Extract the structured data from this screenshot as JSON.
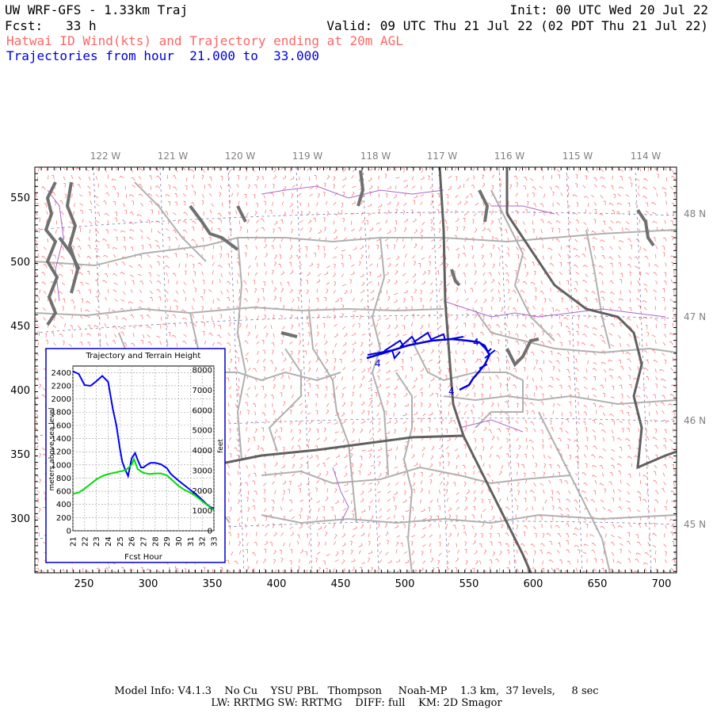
{
  "header": {
    "model_title": "UW WRF-GFS - 1.33km Traj",
    "init": "Init: 00 UTC Wed 20 Jul 22",
    "fcst": "Fcst:   33 h",
    "valid": "Valid: 09 UTC Thu 21 Jul 22 (02 PDT Thu 21 Jul 22)",
    "field": "Hatwai ID Wind(kts) and Trajectory ending at 20m AGL",
    "traj_range": "Trajectories from hour  21.000 to  33.000"
  },
  "map": {
    "top_lon_labels": [
      "122 W",
      "121 W",
      "120 W",
      "119 W",
      "118 W",
      "117 W",
      "116 W",
      "115 W",
      "114 W"
    ],
    "right_lat_labels": [
      "48 N",
      "47 N",
      "46 N",
      "45 N"
    ],
    "left_y_ticks": [
      "550",
      "500",
      "450",
      "400",
      "350",
      "300"
    ],
    "bottom_x_ticks": [
      "250",
      "300",
      "350",
      "400",
      "450",
      "500",
      "550",
      "600",
      "650",
      "700"
    ],
    "trajectory_marker_1": "4",
    "trajectory_marker_2": "4",
    "trajectory_marker_3": "4",
    "colors": {
      "wind_barbs": "#ff6666",
      "trajectory": "#0000dd",
      "roads": "#b0b0b0",
      "state_lines": "#606060",
      "rivers": "#aa66cc"
    }
  },
  "inset": {
    "title": "Trajectory and Terrain Height",
    "ylabel_left": "meters above sea level",
    "ylabel_right": "feet",
    "xlabel": "Fcst Hour"
  },
  "chart_data": {
    "type": "line",
    "title": "Trajectory and Terrain Height",
    "xlabel": "Fcst Hour",
    "ylabel": "meters above sea level",
    "y2label": "feet",
    "x_ticks": [
      "21",
      "22",
      "23",
      "24",
      "25",
      "26",
      "27",
      "28",
      "29",
      "30",
      "31",
      "32",
      "33"
    ],
    "y_ticks": [
      "0",
      "200",
      "400",
      "600",
      "800",
      "1000",
      "1200",
      "1400",
      "1600",
      "1800",
      "2000",
      "2200",
      "2400"
    ],
    "y2_ticks": [
      "0",
      "1000",
      "2000",
      "3000",
      "4000",
      "5000",
      "6000",
      "7000",
      "8000"
    ],
    "xlim": [
      21,
      33
    ],
    "ylim": [
      0,
      2500
    ],
    "grid": true,
    "series": [
      {
        "color": "#0000ff",
        "x": [
          21,
          21.5,
          22,
          22.5,
          23,
          23.5,
          24,
          24.4,
          24.7,
          25,
          25.2,
          25.4,
          25.7,
          26,
          26.3,
          26.5,
          26.8,
          27,
          27.3,
          27.6,
          28,
          28.5,
          29,
          29.3,
          29.6,
          30,
          30.5,
          31,
          31.5,
          32,
          32.4,
          32.7,
          33
        ],
        "values": [
          2420,
          2380,
          2210,
          2200,
          2270,
          2350,
          2260,
          1850,
          1600,
          1250,
          1050,
          950,
          830,
          1100,
          1180,
          1080,
          960,
          960,
          1000,
          1030,
          1030,
          1010,
          950,
          870,
          820,
          760,
          690,
          620,
          550,
          470,
          400,
          360,
          340
        ]
      },
      {
        "color": "#00dd00",
        "x": [
          21,
          21.5,
          22,
          22.5,
          23,
          23.5,
          24,
          24.5,
          25,
          25.5,
          26,
          26.2,
          26.5,
          26.8,
          27,
          27.5,
          28,
          28.5,
          29,
          29.5,
          30,
          30.5,
          31,
          31.5,
          32,
          32.5,
          33
        ],
        "values": [
          560,
          580,
          640,
          710,
          780,
          830,
          860,
          880,
          900,
          920,
          1000,
          1090,
          940,
          900,
          880,
          860,
          870,
          870,
          840,
          760,
          680,
          620,
          580,
          520,
          450,
          380,
          310
        ]
      }
    ]
  },
  "footer": {
    "line1": "Model Info: V4.1.3    No Cu    YSU PBL   Thompson     Noah-MP    1.3 km,  37 levels,     8 sec",
    "line2": "LW: RRTMG SW: RRTMG    DIFF: full    KM: 2D Smagor"
  }
}
